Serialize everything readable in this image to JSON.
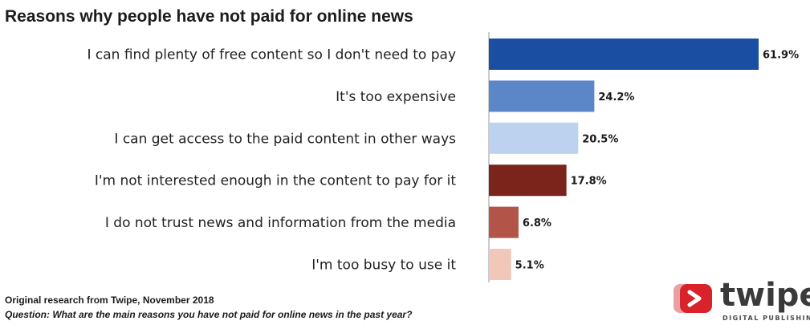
{
  "chart_data": {
    "type": "bar",
    "orientation": "horizontal",
    "title": "Reasons why people have not paid for online news",
    "categories": [
      "I can find plenty of free content so I don't need to pay",
      "It's too expensive",
      "I can get access to the paid content in other ways",
      "I'm not interested enough in the content to pay for it",
      "I do not trust news and information from the media",
      "I'm too busy to use it"
    ],
    "values": [
      61.9,
      24.2,
      20.5,
      17.8,
      6.8,
      5.1
    ],
    "value_labels": [
      "61.9%",
      "24.2%",
      "20.5%",
      "17.8%",
      "6.8%",
      "5.1%"
    ],
    "colors": [
      "#1a4ea3",
      "#5b87c8",
      "#bdd2ee",
      "#7a241c",
      "#b25448",
      "#f0c7b8"
    ],
    "xlim": [
      0,
      61.9
    ],
    "grid": false,
    "xlabel": "",
    "ylabel": ""
  },
  "footer": {
    "source": "Original research from Twipe, November 2018",
    "question": "Question: What are the main reasons you have not paid for online news in the past year?"
  },
  "logo": {
    "wordmark": "twipe",
    "tagline": "DIGITAL PUBLISHING",
    "icon": "play-arrow-icon",
    "color": "#d8232a"
  }
}
